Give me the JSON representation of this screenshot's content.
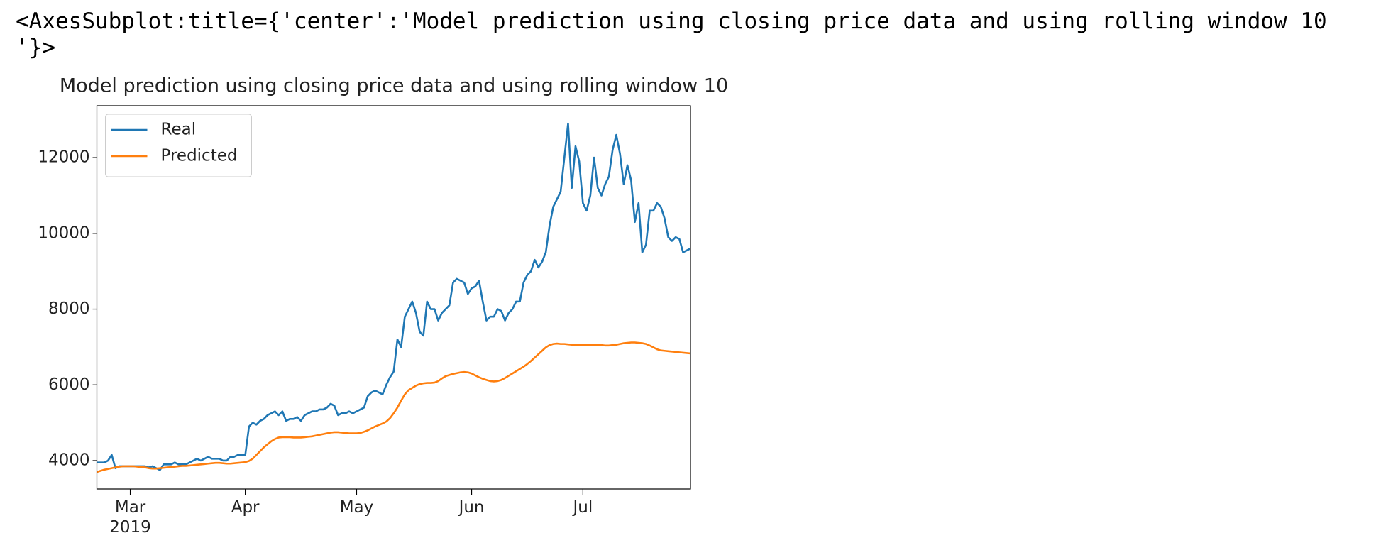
{
  "output_text": "<AxesSubplot:title={'center':'Model prediction using closing price data and using rolling window 10\n'}>",
  "chart_data": {
    "type": "line",
    "title": "Model prediction using closing price data and using rolling window 10",
    "categories": [
      null,
      null,
      null,
      null,
      null,
      null,
      null,
      null,
      null,
      "Mar\n2019",
      null,
      null,
      null,
      null,
      null,
      null,
      null,
      null,
      null,
      null,
      null,
      null,
      null,
      null,
      null,
      null,
      null,
      null,
      null,
      null,
      null,
      null,
      null,
      null,
      null,
      null,
      null,
      null,
      null,
      null,
      "Apr",
      null,
      null,
      null,
      null,
      null,
      null,
      null,
      null,
      null,
      null,
      null,
      null,
      null,
      null,
      null,
      null,
      null,
      null,
      null,
      null,
      null,
      null,
      null,
      null,
      null,
      null,
      null,
      null,
      null,
      "May",
      null,
      null,
      null,
      null,
      null,
      null,
      null,
      null,
      null,
      null,
      null,
      null,
      null,
      null,
      null,
      null,
      null,
      null,
      null,
      null,
      null,
      null,
      null,
      null,
      null,
      null,
      null,
      null,
      null,
      null,
      "Jun",
      null,
      null,
      null,
      null,
      null,
      null,
      null,
      null,
      null,
      null,
      null,
      null,
      null,
      null,
      null,
      null,
      null,
      null,
      null,
      null,
      null,
      null,
      null,
      null,
      null,
      null,
      null,
      null,
      null,
      "Jul",
      null,
      null,
      null,
      null,
      null,
      null,
      null,
      null,
      null,
      null,
      null,
      null,
      null,
      null,
      null,
      null,
      null,
      null,
      null,
      null,
      null,
      null,
      null,
      null,
      null,
      null,
      null,
      null,
      null
    ],
    "series": [
      {
        "name": "Real",
        "color": "#1f77b4",
        "values": [
          3950,
          3950,
          3950,
          4000,
          4150,
          3800,
          3850,
          3850,
          3850,
          3850,
          3850,
          3850,
          3850,
          3850,
          3820,
          3850,
          3800,
          3750,
          3900,
          3900,
          3900,
          3950,
          3900,
          3900,
          3900,
          3950,
          4000,
          4050,
          4000,
          4050,
          4100,
          4050,
          4050,
          4050,
          4000,
          4000,
          4100,
          4100,
          4150,
          4150,
          4150,
          4900,
          5000,
          4950,
          5050,
          5100,
          5200,
          5250,
          5300,
          5200,
          5300,
          5050,
          5100,
          5100,
          5150,
          5050,
          5200,
          5250,
          5300,
          5300,
          5350,
          5350,
          5400,
          5500,
          5450,
          5200,
          5250,
          5250,
          5300,
          5250,
          5300,
          5350,
          5400,
          5700,
          5800,
          5850,
          5800,
          5750,
          6000,
          6200,
          6350,
          7200,
          7000,
          7800,
          8000,
          8200,
          7900,
          7400,
          7300,
          8200,
          8000,
          8000,
          7700,
          7900,
          8000,
          8100,
          8700,
          8800,
          8750,
          8700,
          8400,
          8550,
          8600,
          8750,
          8200,
          7700,
          7800,
          7800,
          8000,
          7950,
          7700,
          7900,
          8000,
          8200,
          8200,
          8700,
          8900,
          9000,
          9300,
          9100,
          9250,
          9500,
          10200,
          10700,
          10900,
          11100,
          12000,
          12900,
          11200,
          12300,
          11900,
          10800,
          10600,
          11000,
          12000,
          11200,
          11000,
          11300,
          11500,
          12200,
          12600,
          12100,
          11300,
          11800,
          11400,
          10300,
          10800,
          9500,
          9700,
          10600,
          10600,
          10800,
          10700,
          10400,
          9900,
          9800,
          9900,
          9850,
          9500,
          9550,
          9600
        ]
      },
      {
        "name": "Predicted",
        "color": "#ff7f0e",
        "values": [
          3700,
          3730,
          3760,
          3780,
          3800,
          3820,
          3840,
          3850,
          3850,
          3850,
          3850,
          3840,
          3830,
          3820,
          3800,
          3790,
          3790,
          3800,
          3810,
          3820,
          3830,
          3840,
          3850,
          3860,
          3860,
          3870,
          3880,
          3890,
          3900,
          3910,
          3920,
          3930,
          3940,
          3940,
          3930,
          3920,
          3920,
          3930,
          3940,
          3950,
          3960,
          3990,
          4050,
          4150,
          4250,
          4350,
          4430,
          4510,
          4570,
          4610,
          4620,
          4620,
          4620,
          4610,
          4610,
          4610,
          4620,
          4630,
          4640,
          4660,
          4680,
          4700,
          4720,
          4740,
          4750,
          4750,
          4740,
          4730,
          4720,
          4720,
          4720,
          4730,
          4760,
          4800,
          4850,
          4900,
          4940,
          4980,
          5030,
          5120,
          5250,
          5400,
          5580,
          5750,
          5860,
          5920,
          5980,
          6020,
          6040,
          6050,
          6050,
          6060,
          6100,
          6170,
          6230,
          6260,
          6290,
          6310,
          6330,
          6340,
          6330,
          6300,
          6250,
          6200,
          6160,
          6130,
          6100,
          6090,
          6100,
          6130,
          6180,
          6240,
          6300,
          6360,
          6420,
          6480,
          6550,
          6630,
          6720,
          6810,
          6900,
          6990,
          7050,
          7080,
          7090,
          7080,
          7080,
          7070,
          7060,
          7050,
          7050,
          7060,
          7060,
          7060,
          7050,
          7050,
          7050,
          7040,
          7040,
          7050,
          7060,
          7080,
          7100,
          7110,
          7120,
          7120,
          7110,
          7100,
          7080,
          7040,
          6990,
          6940,
          6910,
          6900,
          6890,
          6880,
          6870,
          6860,
          6850,
          6840,
          6830
        ]
      }
    ],
    "ylim": [
      3250,
      13370
    ],
    "yticks": [
      4000,
      6000,
      8000,
      10000,
      12000
    ],
    "grid": false,
    "legend": "upper left"
  }
}
